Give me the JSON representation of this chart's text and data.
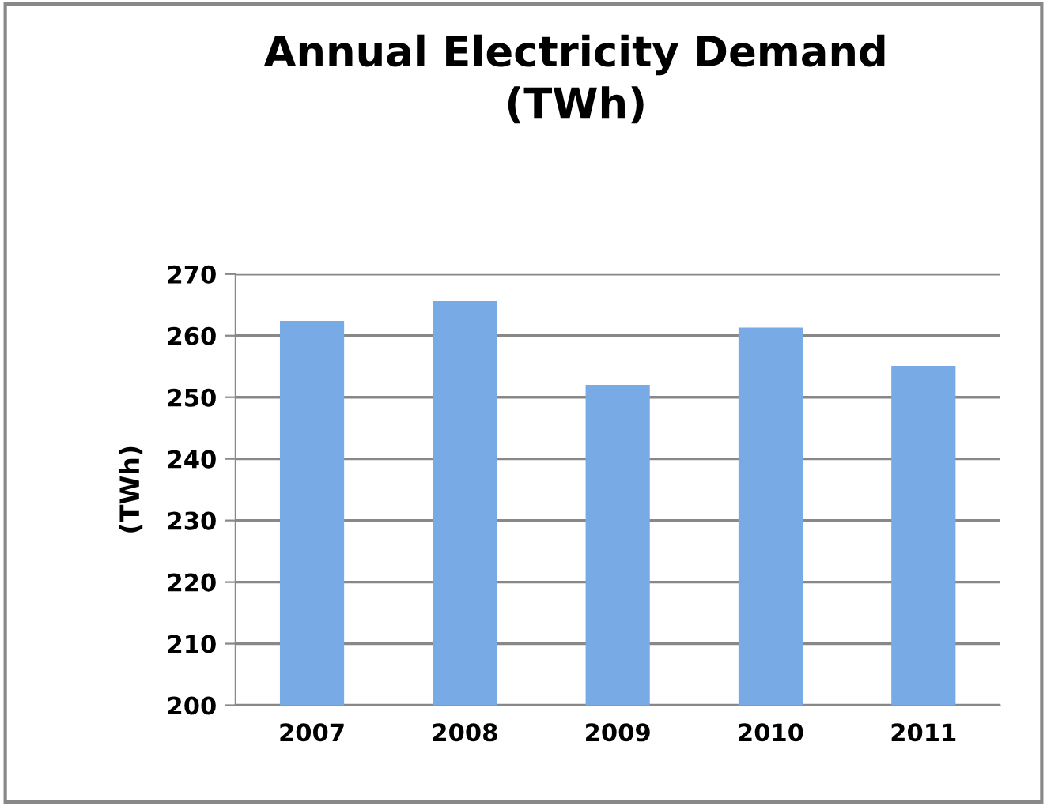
{
  "chart_data": {
    "type": "bar",
    "title": "Annual Electricity Demand\n(TWh)",
    "ylabel": "(TWh)",
    "categories": [
      "2007",
      "2008",
      "2009",
      "2010",
      "2011"
    ],
    "values": [
      262.4,
      265.6,
      252,
      261.3,
      255.1
    ],
    "color": "#78aae6",
    "ylim": [
      200,
      270
    ],
    "yticks": [
      200,
      210,
      220,
      230,
      240,
      250,
      260,
      270
    ],
    "grid": "y"
  }
}
